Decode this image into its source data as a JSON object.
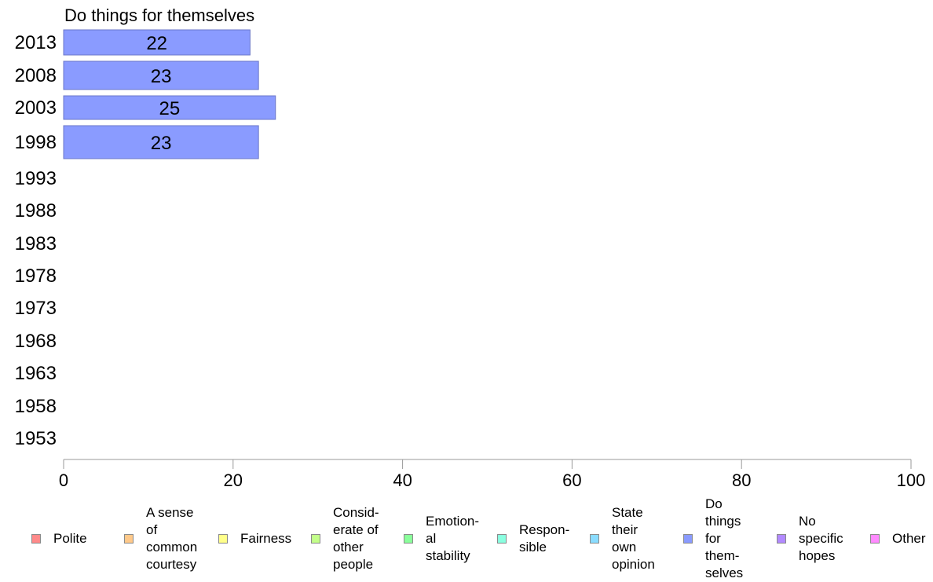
{
  "chart_data": {
    "type": "bar",
    "orientation": "horizontal",
    "title": "Do things for themselves",
    "categories": [
      "2013",
      "2008",
      "2003",
      "1998",
      "1993",
      "1988",
      "1983",
      "1978",
      "1973",
      "1968",
      "1963",
      "1958",
      "1953"
    ],
    "series": [
      {
        "name": "Do things for themselves",
        "color": "#8a9bff",
        "values": [
          22,
          23,
          25,
          23,
          null,
          null,
          null,
          null,
          null,
          null,
          null,
          null,
          null
        ],
        "labels": [
          "22",
          "23",
          "25",
          "23",
          "",
          "",
          "",
          "",
          "",
          "",
          "",
          "",
          ""
        ]
      }
    ],
    "xlim": [
      0,
      100
    ],
    "x_ticks": [
      "0",
      "20",
      "40",
      "60",
      "80",
      "100"
    ],
    "grid": false,
    "legend_position": "bottom"
  },
  "legend": [
    {
      "label": "Polite",
      "color": "#ff8a8a"
    },
    {
      "label": "A sense\nof\ncommon\ncourtesy",
      "color": "#ffc98a"
    },
    {
      "label": "Fairness",
      "color": "#ffff8a"
    },
    {
      "label": "Consid-\nerate of\nother\npeople",
      "color": "#c3ff8a"
    },
    {
      "label": "Emotion-\nal\nstability",
      "color": "#8aff9b"
    },
    {
      "label": "Respon-\nsible",
      "color": "#8affe0"
    },
    {
      "label": "State\ntheir\nown\nopinion",
      "color": "#8adcff"
    },
    {
      "label": "Do\nthings\nfor\nthem-\nselves",
      "color": "#8a9bff"
    },
    {
      "label": "No\nspecific\nhopes",
      "color": "#b28aff"
    },
    {
      "label": "Other",
      "color": "#ff8aff"
    }
  ]
}
